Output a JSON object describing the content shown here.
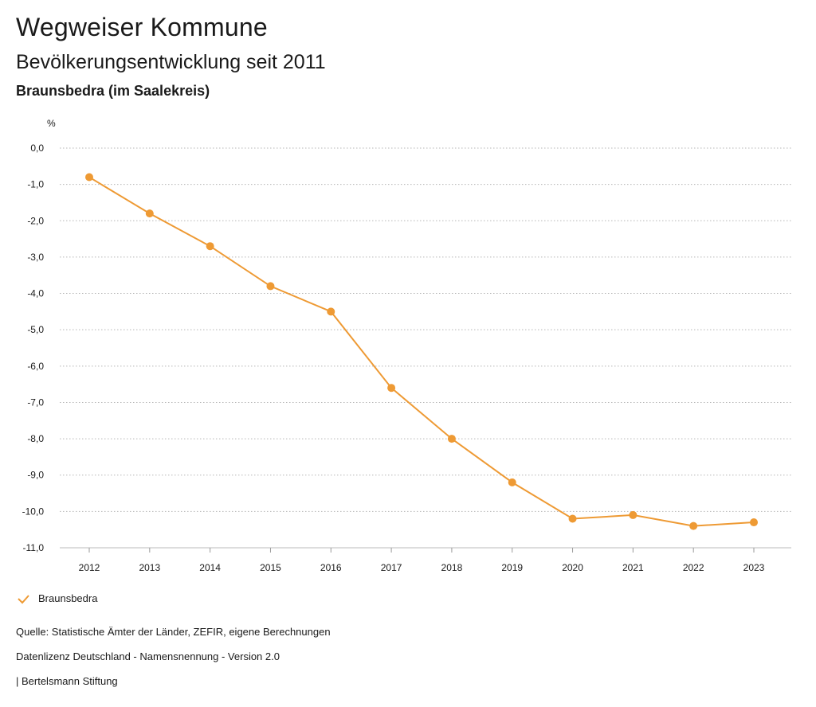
{
  "header": {
    "title": "Wegweiser Kommune",
    "subtitle": "Bevölkerungsentwicklung seit 2011",
    "region": "Braunsbedra (im Saalekreis)"
  },
  "chart_data": {
    "type": "line",
    "ylabel": "%",
    "xlabel": "",
    "x": [
      "2012",
      "2013",
      "2014",
      "2015",
      "2016",
      "2017",
      "2018",
      "2019",
      "2020",
      "2021",
      "2022",
      "2023"
    ],
    "series": [
      {
        "name": "Braunsbedra",
        "color": "#ee9a34",
        "values": [
          -0.8,
          -1.8,
          -2.7,
          -3.8,
          -4.5,
          -6.6,
          -8.0,
          -9.2,
          -10.2,
          -10.1,
          -10.4,
          -10.3
        ]
      }
    ],
    "ylim": [
      -11,
      0
    ],
    "yticks": [
      0,
      -1,
      -2,
      -3,
      -4,
      -5,
      -6,
      -7,
      -8,
      -9,
      -10,
      -11
    ],
    "ytick_labels": [
      "0,0",
      "-1,0",
      "-2,0",
      "-3,0",
      "-4,0",
      "-5,0",
      "-6,0",
      "-7,0",
      "-8,0",
      "-9,0",
      "-10,0",
      "-11,0"
    ],
    "grid": true,
    "legend_position": "bottom-left"
  },
  "footer": {
    "source": "Quelle: Statistische Ämter der Länder, ZEFIR, eigene Berechnungen",
    "license": "Datenlizenz Deutschland - Namensnennung - Version 2.0",
    "publisher": "| Bertelsmann Stiftung"
  }
}
